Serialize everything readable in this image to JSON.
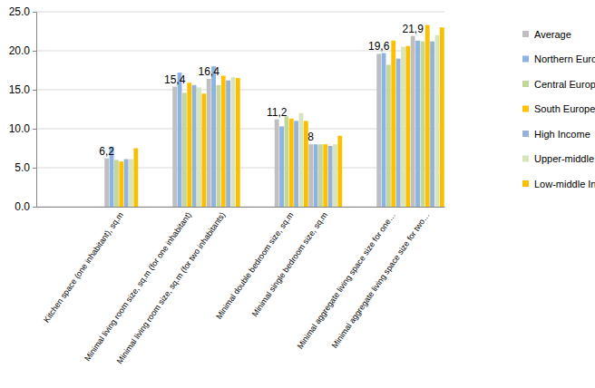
{
  "chart_data": {
    "type": "bar",
    "categories": [
      null,
      null,
      "Kitchen space (one inhabitant), sq.m",
      null,
      "Minimal living room size, sq.m (for one inhabitant)",
      "Minimal living room size, sq.m (for two inhabitants)",
      null,
      "Minimal double bedroom size, sq.m",
      "Minimal single bedroom size, sq.m",
      null,
      "Minimal aggregate living space size for one…",
      "Minimal aggregate living space size for two…"
    ],
    "series": [
      {
        "name": "Average",
        "color": "#bfbfbf",
        "data_labels": true,
        "values": [
          null,
          null,
          6.2,
          null,
          15.4,
          16.4,
          null,
          11.2,
          8,
          null,
          19.6,
          21.9
        ],
        "value_labels": [
          null,
          null,
          "6,2",
          null,
          "15,4",
          "16,4",
          null,
          "11,2",
          "8",
          null,
          "19,6",
          "21,9"
        ]
      },
      {
        "name": "Northern Europe",
        "color": "#8db3e2",
        "values": [
          null,
          null,
          7.7,
          null,
          17.2,
          18.0,
          null,
          10.3,
          8.0,
          null,
          19.7,
          21.3
        ]
      },
      {
        "name": "Central Europe",
        "color": "#c3d69b",
        "values": [
          null,
          null,
          6.0,
          null,
          14.6,
          15.6,
          null,
          11.6,
          8.0,
          null,
          18.2,
          21.2
        ]
      },
      {
        "name": "South Europe",
        "color": "#ffc000",
        "values": [
          null,
          null,
          5.8,
          null,
          15.9,
          16.8,
          null,
          11.3,
          8.0,
          null,
          21.3,
          23.3
        ]
      },
      {
        "name": "High Income",
        "color": "#95b3d7",
        "values": [
          null,
          null,
          6.1,
          null,
          15.6,
          16.2,
          null,
          11.0,
          7.8,
          null,
          19.0,
          21.2
        ]
      },
      {
        "name": "Upper-middle Income",
        "color": "#d7e4bc",
        "values": [
          null,
          null,
          6.1,
          null,
          15.3,
          16.6,
          null,
          12.0,
          8.0,
          null,
          20.5,
          22.0
        ]
      },
      {
        "name": "Low-middle Income",
        "color": "#fac000",
        "values": [
          null,
          null,
          7.5,
          null,
          14.5,
          16.5,
          null,
          11.0,
          9.1,
          null,
          20.6,
          23.0
        ]
      }
    ],
    "ylim": [
      0,
      25
    ],
    "yticks": [
      {
        "value": 0,
        "label": "0.0"
      },
      {
        "value": 5,
        "label": "5.0"
      },
      {
        "value": 10,
        "label": "10.0"
      },
      {
        "value": 15,
        "label": "15.0"
      },
      {
        "value": 20,
        "label": "20.0"
      },
      {
        "value": 25,
        "label": "25.0"
      }
    ],
    "grid": true,
    "legend": "right"
  }
}
